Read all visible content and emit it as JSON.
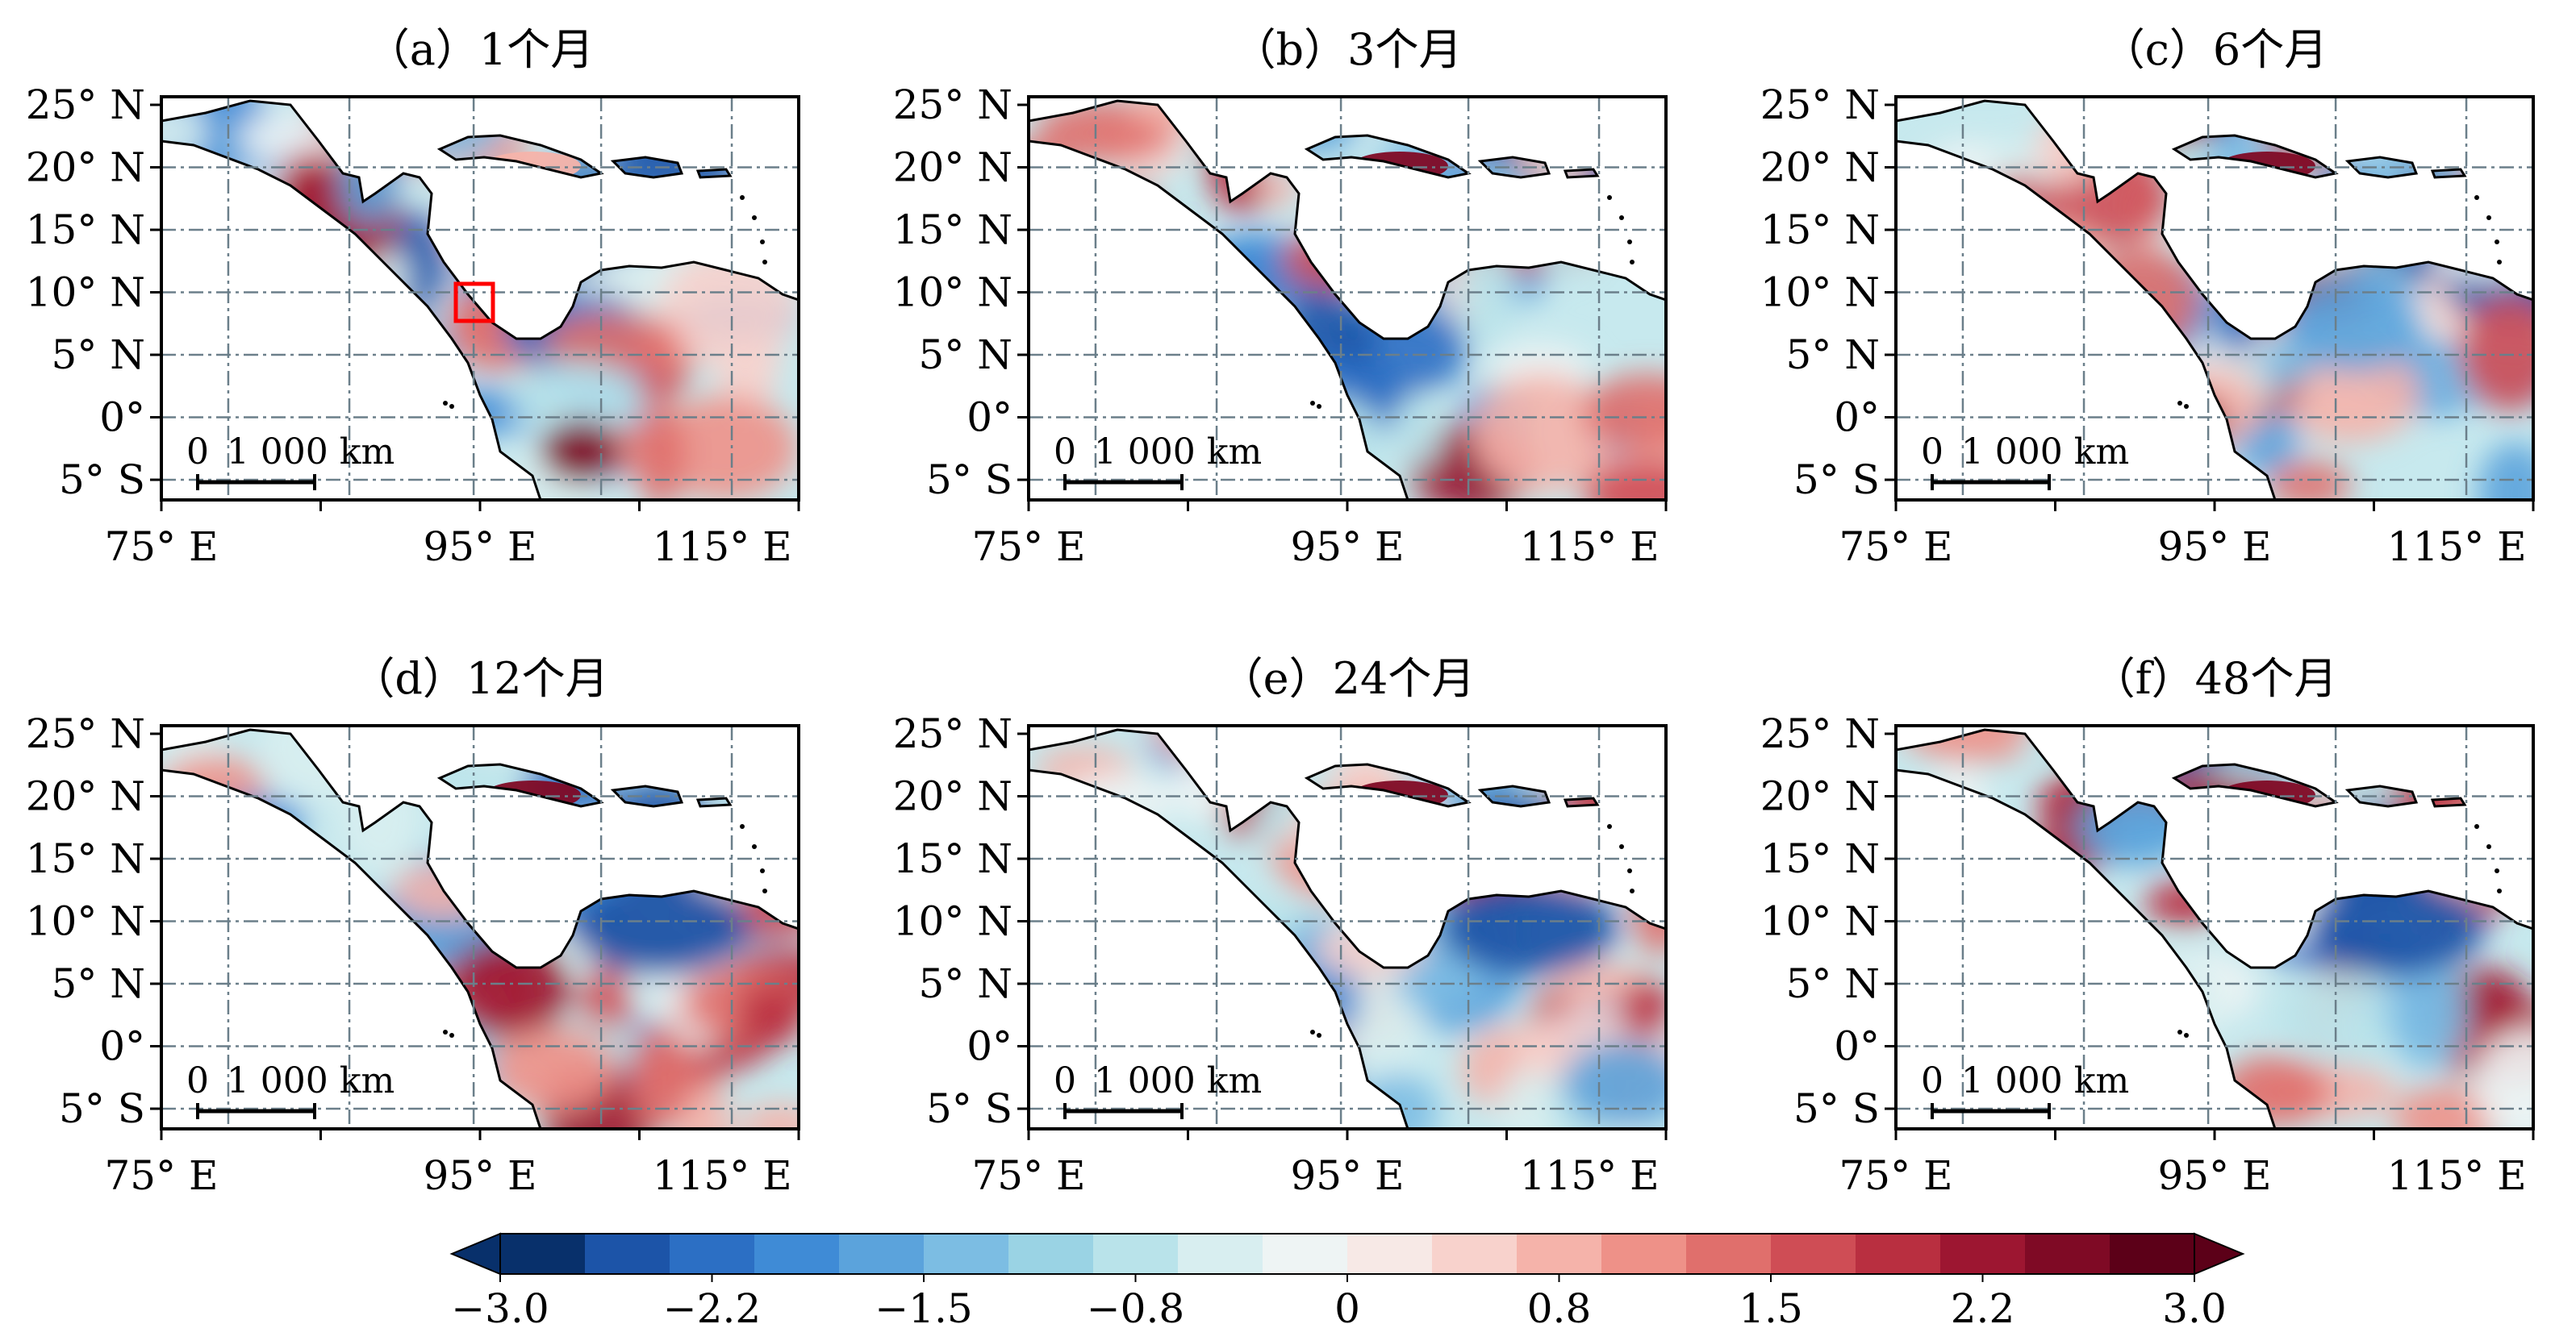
{
  "panels": [
    {
      "title": "（a）1个月",
      "has_marker": true
    },
    {
      "title": "（b）3个月",
      "has_marker": false
    },
    {
      "title": "（c）6个月",
      "has_marker": false
    },
    {
      "title": "（d）12个月",
      "has_marker": false
    },
    {
      "title": "（e）24个月",
      "has_marker": false
    },
    {
      "title": "（f）48个月",
      "has_marker": false
    }
  ],
  "axes": {
    "lat_ticks": [
      "25° N",
      "20° N",
      "15° N",
      "10° N",
      "5° N",
      "0°",
      "5° S"
    ],
    "lon_ticks": [
      "75° E",
      "95° E",
      "115° E"
    ]
  },
  "scale_bar": {
    "zero": "0",
    "distance": "1 000 km"
  },
  "colorbar": {
    "tick_labels": [
      "−3.0",
      "−2.2",
      "−1.5",
      "−0.8",
      "0",
      "0.8",
      "1.5",
      "2.2",
      "3.0"
    ],
    "colors": [
      "#08306b",
      "#1c54a8",
      "#2c6fc4",
      "#3f8bd6",
      "#5ba3dc",
      "#7cbde3",
      "#9ad3e4",
      "#b9e3ea",
      "#d8eef0",
      "#eef4f4",
      "#f7e9e6",
      "#f8d2cc",
      "#f5b3aa",
      "#ee9188",
      "#e06f6c",
      "#cf4d55",
      "#b92f40",
      "#9d1631",
      "#7f0a25",
      "#5c0018"
    ]
  },
  "colors": {
    "land_outline": "#000000",
    "grid": "#6b7f8a",
    "marker": "#ff0000"
  }
}
